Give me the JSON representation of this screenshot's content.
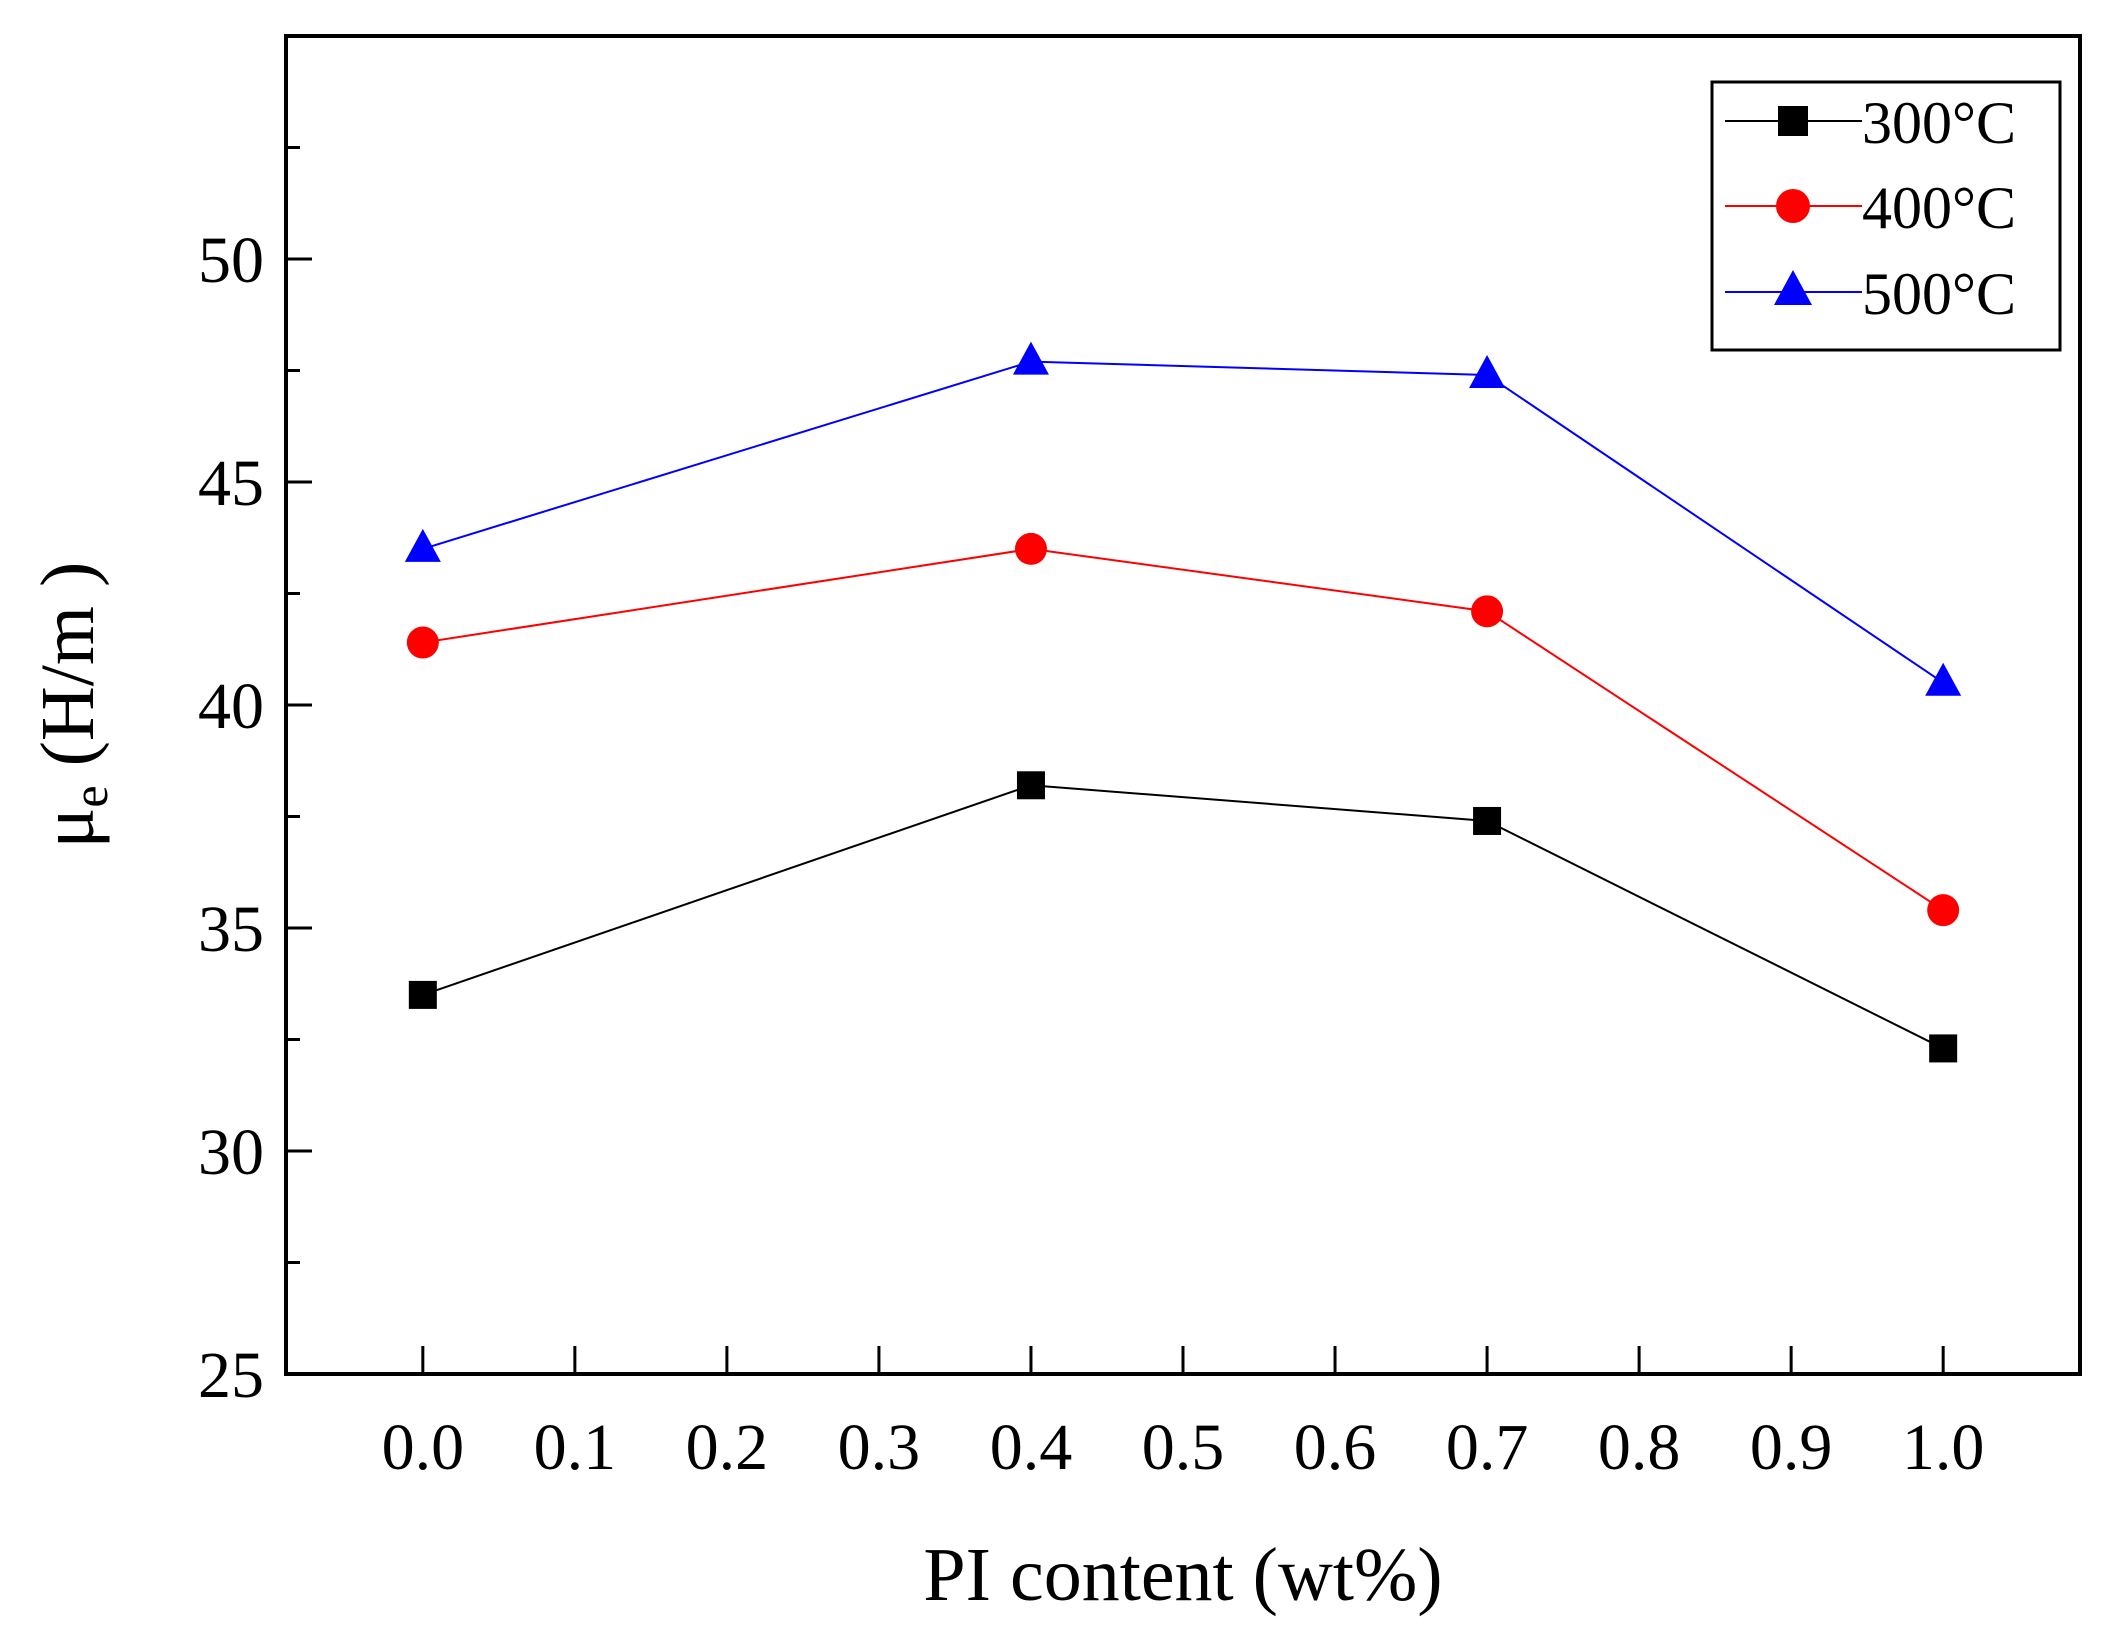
{
  "chart_data": {
    "type": "line",
    "title": "",
    "xlabel": "PI content (wt%)",
    "ylabel": {
      "symbol": "μ",
      "subscript": "e",
      "unit": " (H/m )"
    },
    "xlim": [
      -0.09,
      1.09
    ],
    "ylim": [
      25,
      55
    ],
    "xticks": [
      0.0,
      0.1,
      0.2,
      0.3,
      0.4,
      0.5,
      0.6,
      0.7,
      0.8,
      0.9,
      1.0
    ],
    "xtick_labels": [
      "0.0",
      "0.1",
      "0.2",
      "0.3",
      "0.4",
      "0.5",
      "0.6",
      "0.7",
      "0.8",
      "0.9",
      "1.0"
    ],
    "yticks": [
      25,
      30,
      35,
      40,
      45,
      50
    ],
    "ytick_labels": [
      "25",
      "30",
      "35",
      "40",
      "45",
      "50"
    ],
    "grid": false,
    "legend_position": "top-right",
    "x": [
      0.0,
      0.4,
      0.7,
      1.0
    ],
    "series": [
      {
        "name": "300°C",
        "values": [
          33.5,
          38.2,
          37.4,
          32.3
        ],
        "color": "#000000",
        "marker": "square"
      },
      {
        "name": "400°C",
        "values": [
          41.4,
          43.5,
          42.1,
          35.4
        ],
        "color": "#ff0000",
        "marker": "circle"
      },
      {
        "name": "500°C",
        "values": [
          43.5,
          47.7,
          47.4,
          40.5
        ],
        "color": "#0000ff",
        "marker": "triangle"
      }
    ]
  }
}
